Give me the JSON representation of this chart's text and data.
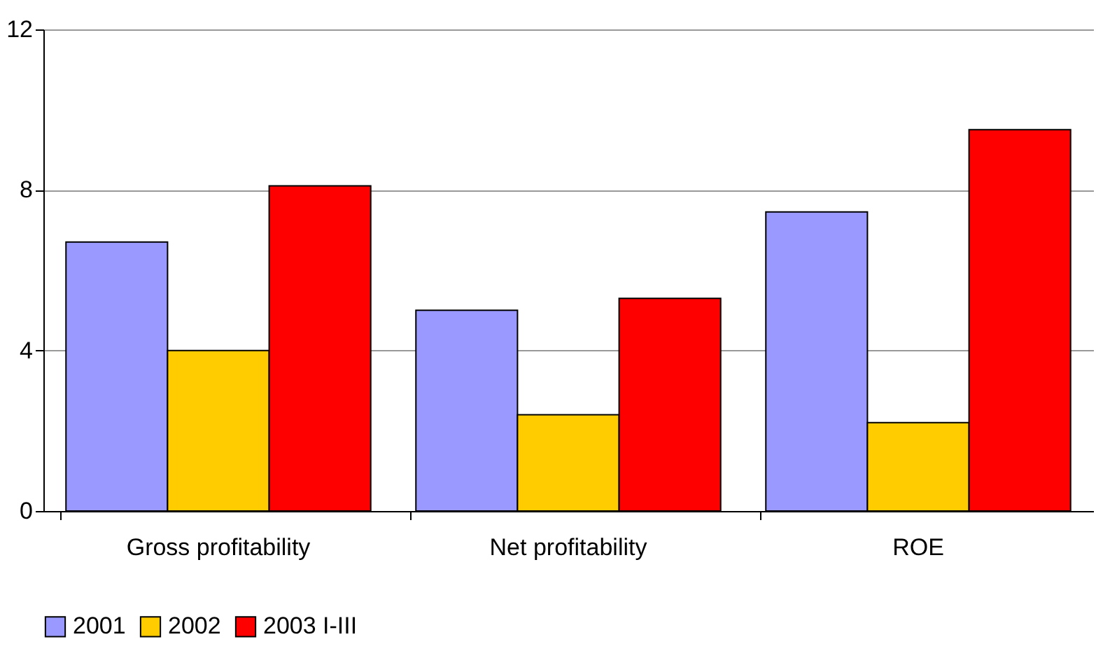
{
  "chart_data": {
    "type": "bar",
    "categories": [
      "Gross profitability",
      "Net profitability",
      "ROE"
    ],
    "series": [
      {
        "name": "2001",
        "color": "#9999ff",
        "values": [
          6.7,
          5.0,
          7.45
        ]
      },
      {
        "name": "2002",
        "color": "#ffcc00",
        "values": [
          4.0,
          2.4,
          2.2
        ]
      },
      {
        "name": "2003 I-III",
        "color": "#ff0000",
        "values": [
          8.1,
          5.3,
          9.5
        ]
      }
    ],
    "ylim": [
      0,
      12
    ],
    "yticks": [
      0,
      4,
      8,
      12
    ],
    "grid": "y",
    "legend": "bottom"
  }
}
